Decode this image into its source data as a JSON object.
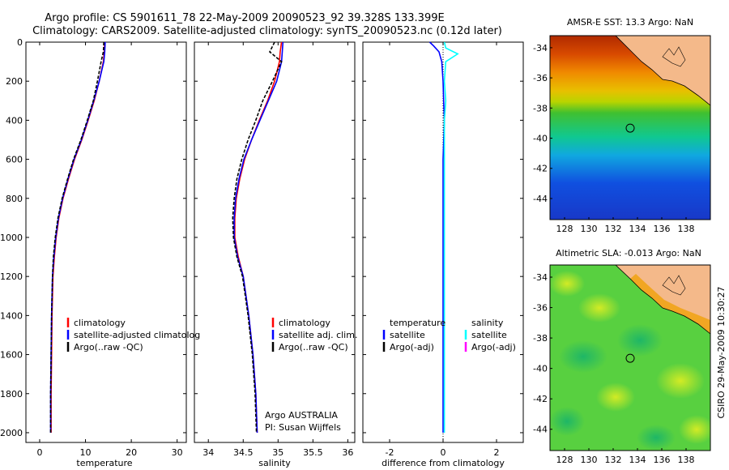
{
  "title": {
    "line1": "Argo profile: CS 5901611_78 22-May-2009 20090523_92 39.328S 133.399E",
    "line2": "Climatology: CARS2009. Satellite-adjusted climatology: synTS_20090523.nc (0.12d later)"
  },
  "chart_data": [
    {
      "type": "line",
      "name": "temperature-profile",
      "xlabel": "temperature",
      "ylabel": "",
      "xlim": [
        -3,
        32
      ],
      "ylim": [
        0,
        2050
      ],
      "y_inverted": true,
      "xticks": [
        0,
        10,
        20,
        30
      ],
      "yticks": [
        0,
        200,
        400,
        600,
        800,
        1000,
        1200,
        1400,
        1600,
        1800,
        2000
      ],
      "legend": [
        "climatology",
        "satellite-adjusted climatolog",
        "Argo(..raw -QC)"
      ],
      "legend_position": "center-right",
      "series": [
        {
          "name": "climatology",
          "color": "#ff0000",
          "dash": "solid",
          "x": [
            14.2,
            14.1,
            13.9,
            13.0,
            11.9,
            10.6,
            9.2,
            7.6,
            6.3,
            5.1,
            4.2,
            3.6,
            3.2,
            2.9,
            2.7,
            2.6,
            2.5,
            2.5
          ],
          "y": [
            0,
            50,
            100,
            200,
            300,
            400,
            500,
            600,
            700,
            800,
            900,
            1000,
            1100,
            1200,
            1400,
            1600,
            1800,
            2000
          ]
        },
        {
          "name": "satellite-adjusted climatology",
          "color": "#0000ff",
          "dash": "solid",
          "x": [
            14.3,
            14.2,
            14.0,
            13.0,
            11.8,
            10.5,
            9.1,
            7.5,
            6.2,
            5.0,
            4.1,
            3.5,
            3.1,
            2.8,
            2.6,
            2.5,
            2.4,
            2.4
          ],
          "y": [
            0,
            50,
            100,
            200,
            300,
            400,
            500,
            600,
            700,
            800,
            900,
            1000,
            1100,
            1200,
            1400,
            1600,
            1800,
            2000
          ]
        },
        {
          "name": "Argo(..raw -QC)",
          "color": "#000000",
          "dash": "4,2",
          "x": [
            14.0,
            13.9,
            13.4,
            12.6,
            11.7,
            10.4,
            9.0,
            7.4,
            6.1,
            4.9,
            4.0,
            3.4,
            3.0,
            2.8,
            2.6,
            2.5,
            2.4,
            2.4
          ],
          "y": [
            0,
            50,
            100,
            200,
            300,
            400,
            500,
            600,
            700,
            800,
            900,
            1000,
            1100,
            1200,
            1400,
            1600,
            1800,
            2000
          ]
        }
      ]
    },
    {
      "type": "line",
      "name": "salinity-profile",
      "xlabel": "salinity",
      "ylabel": "",
      "xlim": [
        33.8,
        36.1
      ],
      "ylim": [
        0,
        2050
      ],
      "y_inverted": true,
      "xticks": [
        34,
        34.5,
        35,
        35.5,
        36
      ],
      "legend": [
        "climatology",
        "satellite adj. clim.",
        "Argo(..raw -QC)"
      ],
      "legend_position": "center-right",
      "annotation": [
        "Argo AUSTRALIA",
        "PI: Susan Wijffels"
      ],
      "series": [
        {
          "name": "climatology",
          "color": "#ff0000",
          "dash": "solid",
          "x": [
            35.05,
            35.03,
            35.02,
            34.95,
            34.85,
            34.73,
            34.62,
            34.52,
            34.45,
            34.4,
            34.38,
            34.38,
            34.43,
            34.5,
            34.58,
            34.64,
            34.68,
            34.7
          ],
          "y": [
            0,
            50,
            100,
            200,
            300,
            400,
            500,
            600,
            700,
            800,
            900,
            1000,
            1100,
            1200,
            1400,
            1600,
            1800,
            2000
          ]
        },
        {
          "name": "satellite adj. clim.",
          "color": "#0000ff",
          "dash": "solid",
          "x": [
            35.07,
            35.06,
            35.05,
            34.98,
            34.86,
            34.74,
            34.62,
            34.51,
            34.44,
            34.39,
            34.37,
            34.37,
            34.42,
            34.5,
            34.58,
            34.64,
            34.68,
            34.7
          ],
          "y": [
            0,
            50,
            100,
            200,
            300,
            400,
            500,
            600,
            700,
            800,
            900,
            1000,
            1100,
            1200,
            1400,
            1600,
            1800,
            2000
          ]
        },
        {
          "name": "Argo(..raw -QC)",
          "color": "#000000",
          "dash": "4,2",
          "x": [
            34.95,
            34.88,
            35.05,
            34.92,
            34.78,
            34.68,
            34.57,
            34.48,
            34.41,
            34.37,
            34.35,
            34.36,
            34.41,
            34.49,
            34.57,
            34.63,
            34.67,
            34.69
          ],
          "y": [
            0,
            50,
            100,
            200,
            300,
            400,
            500,
            600,
            700,
            800,
            900,
            1000,
            1100,
            1200,
            1400,
            1600,
            1800,
            2000
          ]
        }
      ]
    },
    {
      "type": "line",
      "name": "difference-profile",
      "xlabel": "difference from climatology",
      "ylabel": "",
      "xlim": [
        -3,
        3
      ],
      "ylim": [
        0,
        2050
      ],
      "y_inverted": true,
      "xticks": [
        -2,
        0,
        2
      ],
      "legend_temperature_title": "temperature",
      "legend_salinity_title": "salinity",
      "legend_temperature": [
        "satellite",
        "Argo(-adj)"
      ],
      "legend_salinity": [
        "satellite",
        "Argo(-adj)"
      ],
      "series": [
        {
          "name": "temperature satellite",
          "color": "#0000ff",
          "dash": "solid",
          "x": [
            -0.5,
            -0.35,
            -0.15,
            -0.05,
            0.0,
            0.02,
            0.05,
            0.0,
            0.0,
            0.0,
            0.0,
            0.0,
            0.0,
            0.0
          ],
          "y": [
            0,
            20,
            50,
            100,
            200,
            300,
            400,
            600,
            800,
            1000,
            1200,
            1500,
            1800,
            2000
          ]
        },
        {
          "name": "salinity satellite",
          "color": "#00ffff",
          "dash": "solid",
          "x": [
            0.05,
            0.1,
            0.55,
            0.1,
            0.05,
            0.1,
            0.05,
            0.05,
            0.05,
            0.05,
            0.05,
            0.05,
            0.05,
            0.05
          ],
          "y": [
            0,
            30,
            60,
            100,
            200,
            300,
            400,
            600,
            800,
            1000,
            1200,
            1500,
            1800,
            2000
          ]
        }
      ]
    }
  ],
  "maps": [
    {
      "title": "AMSR-E SST: 13.3 Argo: NaN",
      "lon_ticks": [
        128,
        130,
        132,
        134,
        136,
        138
      ],
      "lat_ticks": [
        -34,
        -36,
        -38,
        -40,
        -42,
        -44
      ],
      "marker_lon": 133.4,
      "marker_lat": -39.33
    },
    {
      "title": "Altimetric SLA: -0.013 Argo: NaN",
      "lon_ticks": [
        128,
        130,
        132,
        134,
        136,
        138
      ],
      "lat_ticks": [
        -34,
        -36,
        -38,
        -40,
        -42,
        -44
      ],
      "marker_lon": 133.4,
      "marker_lat": -39.33
    }
  ],
  "stamp": "CSIRO 29-May-2009 10:30:27"
}
